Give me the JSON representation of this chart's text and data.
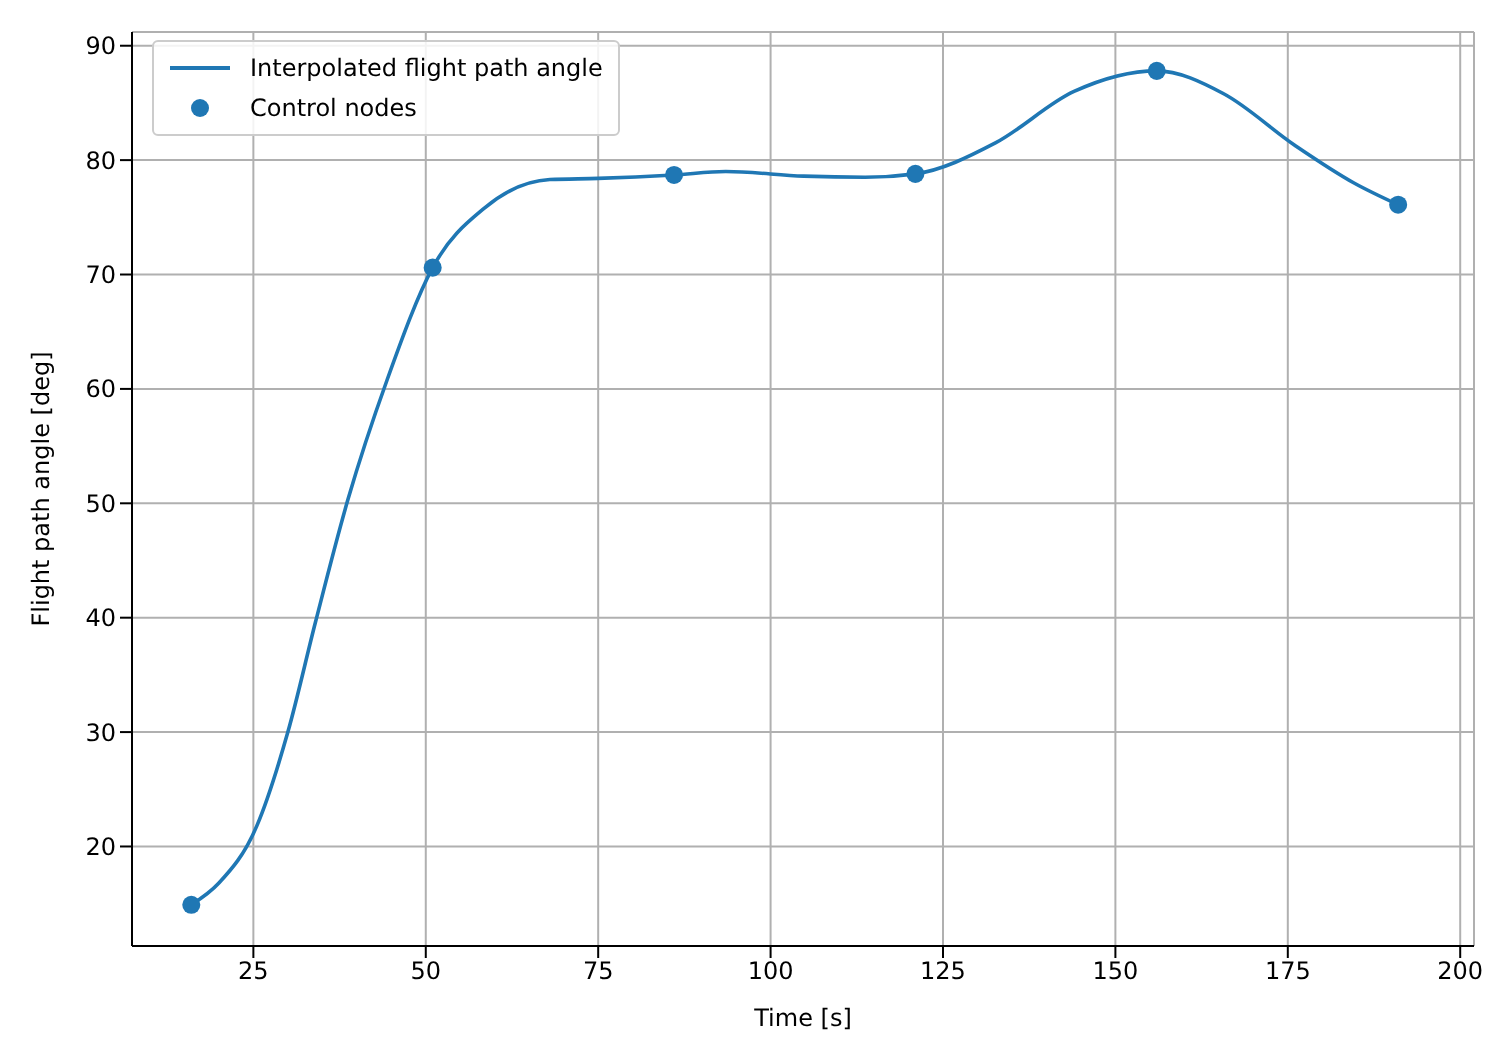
{
  "chart_data": {
    "type": "line",
    "xlabel": "Time [s]",
    "ylabel": "Flight path angle [deg]",
    "xlim": [
      7.4,
      202
    ],
    "ylim": [
      11.3,
      91.2
    ],
    "xticks": [
      25,
      50,
      75,
      100,
      125,
      150,
      175,
      200
    ],
    "yticks": [
      20,
      30,
      40,
      50,
      60,
      70,
      80,
      90
    ],
    "grid": true,
    "legend": "top left",
    "series": [
      {
        "name": "Interpolated flight path angle",
        "type": "line",
        "color": "#1f77b4",
        "marker": "none",
        "x": [
          16,
          20,
          25.5,
          30,
          34,
          38.7,
          44.4,
          51,
          58.5,
          68,
          75,
          86,
          93.5,
          104.8,
          113.7,
          121,
          132.6,
          144,
          156,
          165.7,
          176,
          184.6,
          191
        ],
        "values": [
          14.9,
          16.8,
          21.8,
          30,
          39.6,
          50.3,
          60.8,
          70.6,
          75.8,
          78.3,
          78.4,
          78.7,
          79,
          78.6,
          78.5,
          78.8,
          81.5,
          86,
          87.8,
          85.8,
          81.3,
          78,
          76.1
        ]
      },
      {
        "name": "Control nodes",
        "type": "scatter",
        "color": "#1f77b4",
        "marker": "circle",
        "x": [
          16,
          51,
          86,
          121,
          156,
          191
        ],
        "values": [
          14.9,
          70.6,
          78.7,
          78.8,
          87.8,
          76.1
        ]
      }
    ]
  }
}
